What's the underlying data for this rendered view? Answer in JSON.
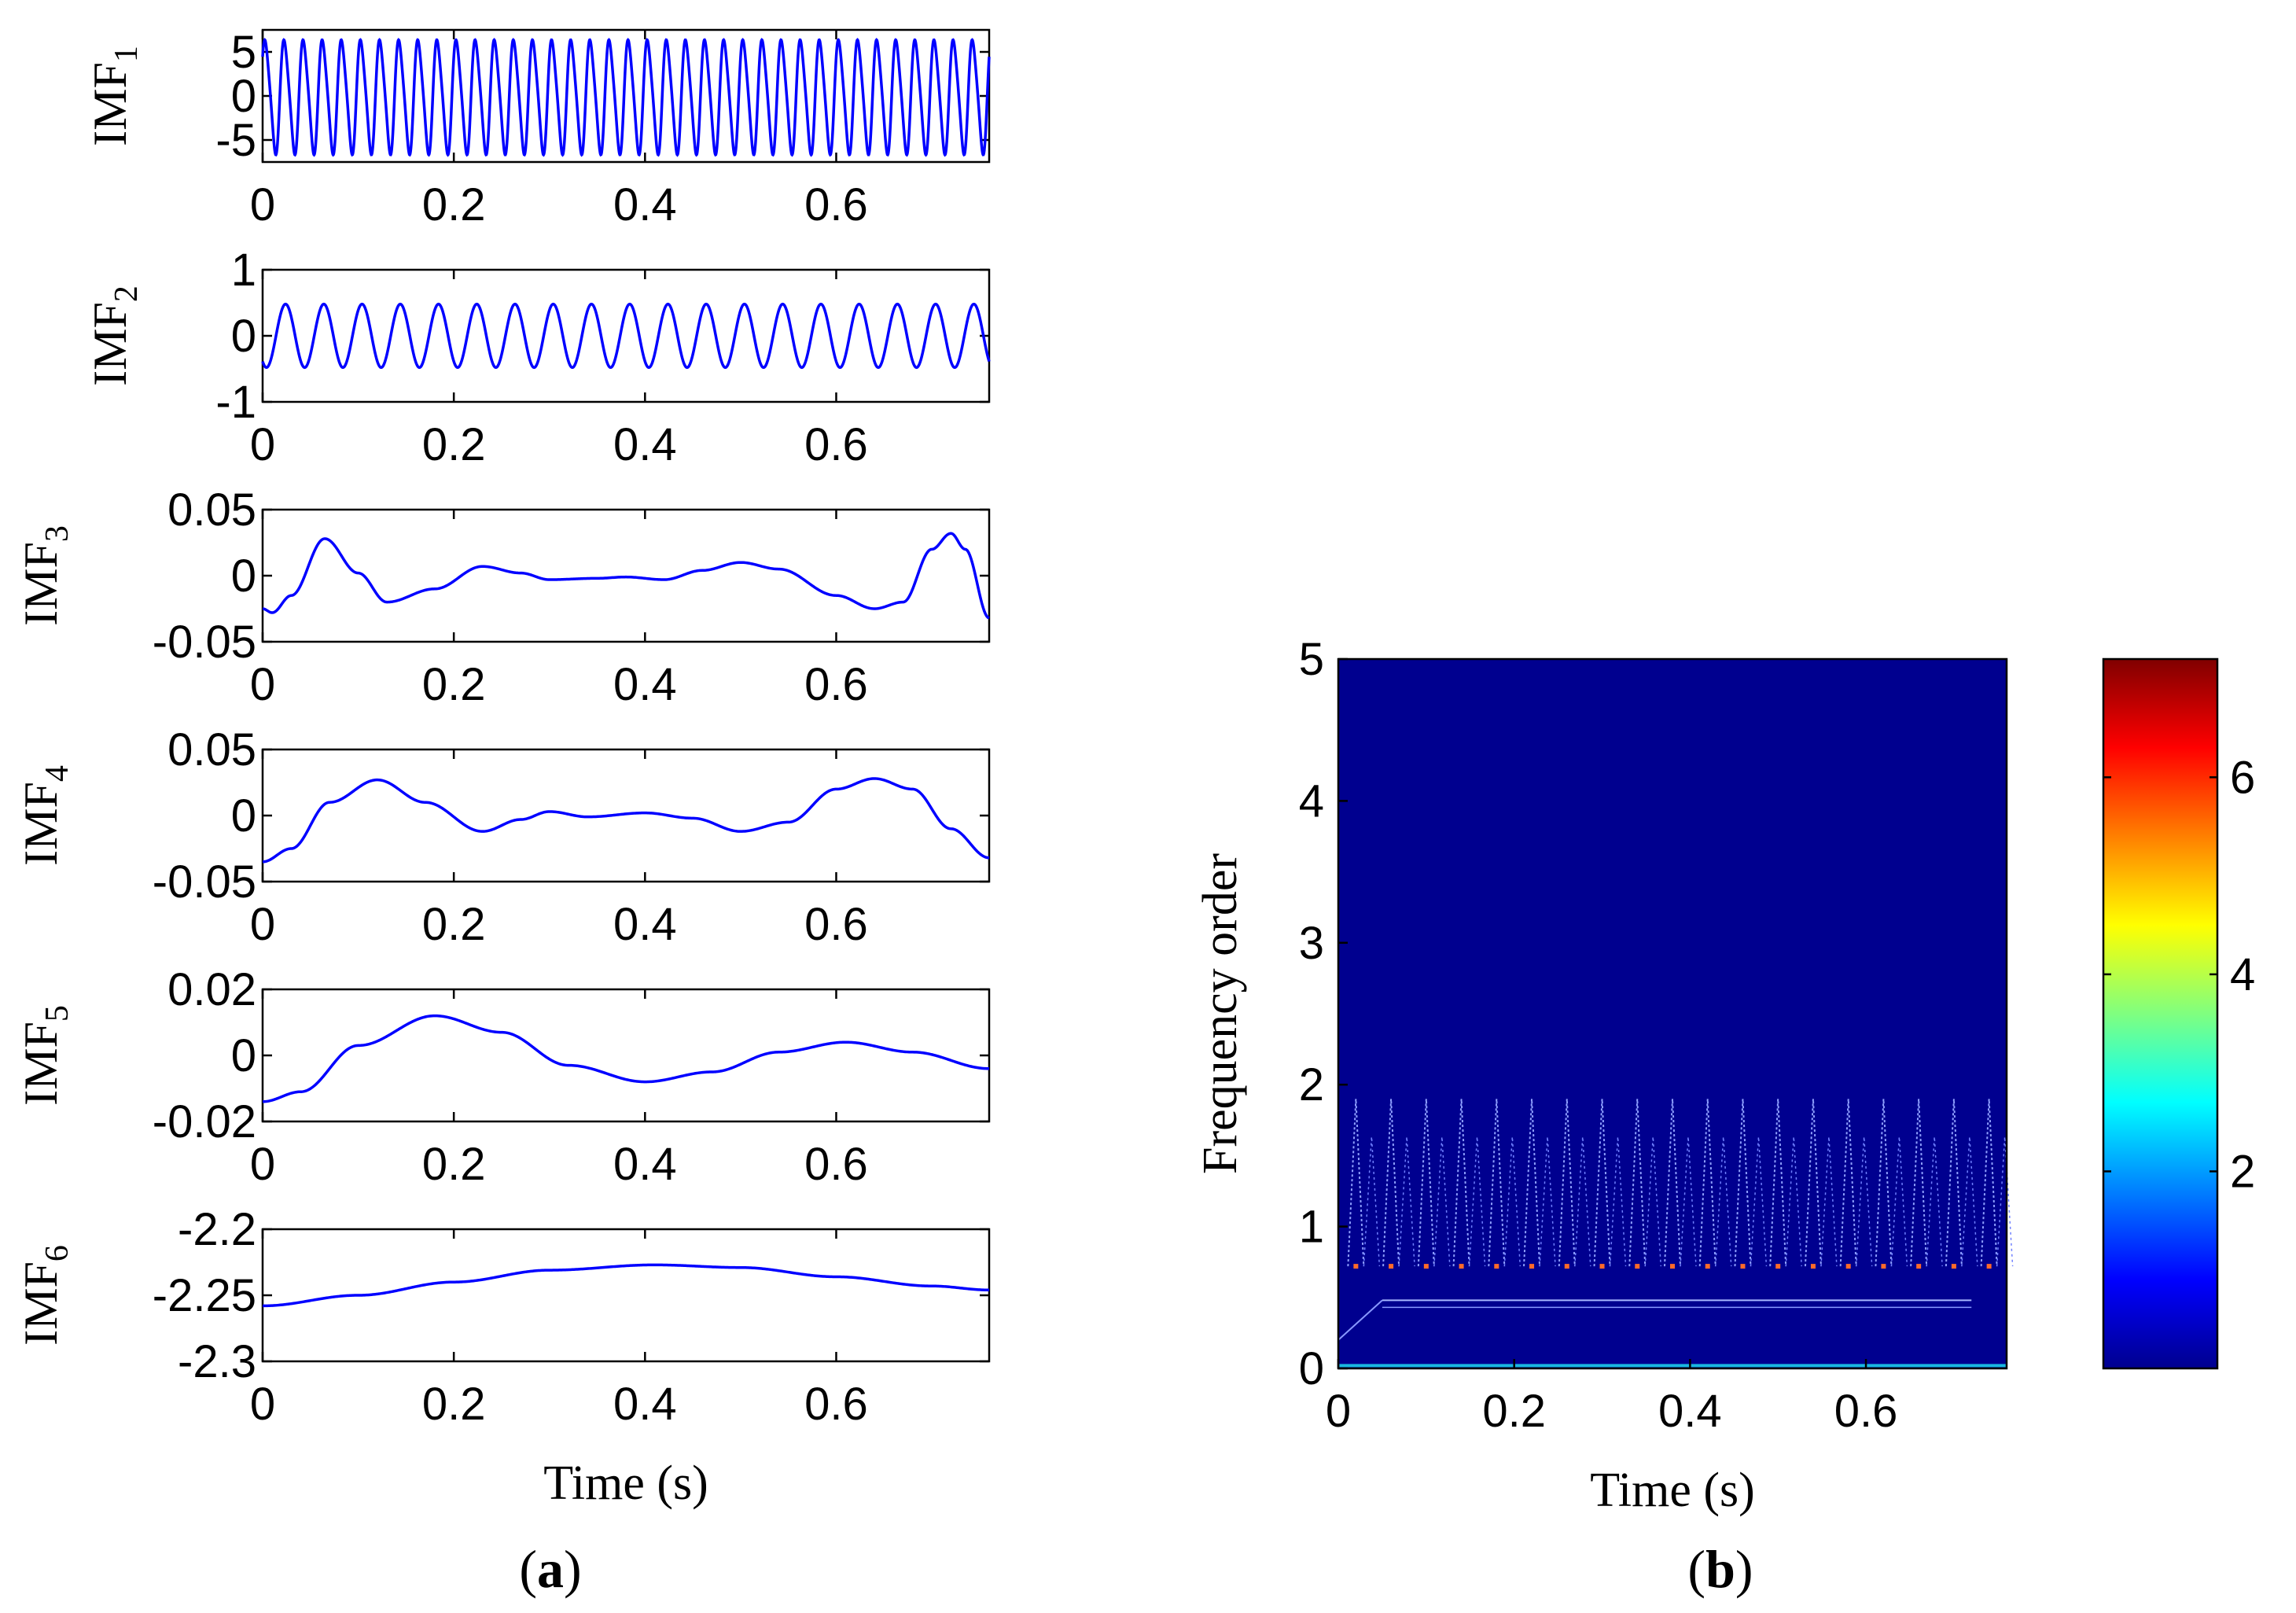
{
  "figure": {
    "panel_a_label": "a",
    "panel_b_label": "b",
    "xlabel": "Time (s)"
  },
  "chart_data": [
    {
      "type": "line",
      "panel": "a",
      "ylabel_base": "IMF",
      "ylabel_sub": "1",
      "xlim": [
        0,
        0.76
      ],
      "ylim": [
        -7.5,
        7.5
      ],
      "xticks": [
        0,
        0.2,
        0.4,
        0.6
      ],
      "xtick_labels": [
        "0",
        "0.2",
        "0.4",
        "0.6"
      ],
      "yticks": [
        5,
        0,
        -5
      ],
      "ytick_labels": [
        "5",
        "0",
        "-5"
      ],
      "xlabel": "",
      "series": [
        {
          "name": "IMF1",
          "color": "#0000ff",
          "model": "oscillation",
          "frequency_hz": 50,
          "amplitude": 6.3,
          "phase": 0.6,
          "mean": 0
        }
      ]
    },
    {
      "type": "line",
      "panel": "a",
      "ylabel_base": "IMF",
      "ylabel_sub": "2",
      "xlim": [
        0,
        0.76
      ],
      "ylim": [
        -1,
        1
      ],
      "xticks": [
        0,
        0.2,
        0.4,
        0.6
      ],
      "xtick_labels": [
        "0",
        "0.2",
        "0.4",
        "0.6"
      ],
      "yticks": [
        1,
        0,
        -1
      ],
      "ytick_labels": [
        "1",
        "0",
        "-1"
      ],
      "xlabel": "",
      "series": [
        {
          "name": "IMF2",
          "color": "#0000ff",
          "model": "oscillation",
          "frequency_hz": 25,
          "amplitude": 0.48,
          "phase": -2.2,
          "mean": 0
        }
      ]
    },
    {
      "type": "line",
      "panel": "a",
      "ylabel_base": "IMF",
      "ylabel_sub": "3",
      "xlim": [
        0,
        0.76
      ],
      "ylim": [
        -0.05,
        0.05
      ],
      "xticks": [
        0,
        0.2,
        0.4,
        0.6
      ],
      "xtick_labels": [
        "0",
        "0.2",
        "0.4",
        "0.6"
      ],
      "yticks": [
        0.05,
        0,
        -0.05
      ],
      "ytick_labels": [
        "0.05",
        "0",
        "-0.05"
      ],
      "xlabel": "",
      "series": [
        {
          "name": "IMF3",
          "color": "#0000ff",
          "x": [
            0,
            0.01,
            0.03,
            0.065,
            0.1,
            0.13,
            0.18,
            0.23,
            0.27,
            0.3,
            0.35,
            0.38,
            0.42,
            0.46,
            0.5,
            0.54,
            0.6,
            0.64,
            0.67,
            0.7,
            0.72,
            0.735,
            0.76
          ],
          "y": [
            -0.025,
            -0.028,
            -0.015,
            0.028,
            0.002,
            -0.02,
            -0.01,
            0.007,
            0.002,
            -0.003,
            -0.002,
            -0.001,
            -0.003,
            0.004,
            0.01,
            0.005,
            -0.015,
            -0.025,
            -0.02,
            0.02,
            0.032,
            0.02,
            -0.032
          ]
        }
      ]
    },
    {
      "type": "line",
      "panel": "a",
      "ylabel_base": "IMF",
      "ylabel_sub": "4",
      "xlim": [
        0,
        0.76
      ],
      "ylim": [
        -0.05,
        0.05
      ],
      "xticks": [
        0,
        0.2,
        0.4,
        0.6
      ],
      "xtick_labels": [
        "0",
        "0.2",
        "0.4",
        "0.6"
      ],
      "yticks": [
        0.05,
        0,
        -0.05
      ],
      "ytick_labels": [
        "0.05",
        "0",
        "-0.05"
      ],
      "xlabel": "",
      "series": [
        {
          "name": "IMF4",
          "color": "#0000ff",
          "x": [
            0,
            0.03,
            0.07,
            0.12,
            0.17,
            0.23,
            0.27,
            0.3,
            0.34,
            0.4,
            0.45,
            0.5,
            0.55,
            0.6,
            0.64,
            0.68,
            0.72,
            0.76
          ],
          "y": [
            -0.035,
            -0.025,
            0.01,
            0.027,
            0.01,
            -0.012,
            -0.003,
            0.003,
            -0.001,
            0.002,
            -0.002,
            -0.012,
            -0.005,
            0.02,
            0.028,
            0.02,
            -0.01,
            -0.032
          ]
        }
      ]
    },
    {
      "type": "line",
      "panel": "a",
      "ylabel_base": "IMF",
      "ylabel_sub": "5",
      "xlim": [
        0,
        0.76
      ],
      "ylim": [
        -0.02,
        0.02
      ],
      "xticks": [
        0,
        0.2,
        0.4,
        0.6
      ],
      "xtick_labels": [
        "0",
        "0.2",
        "0.4",
        "0.6"
      ],
      "yticks": [
        0.02,
        0,
        -0.02
      ],
      "ytick_labels": [
        "0.02",
        "0",
        "-0.02"
      ],
      "xlabel": "",
      "series": [
        {
          "name": "IMF5",
          "color": "#0000ff",
          "x": [
            0,
            0.04,
            0.1,
            0.18,
            0.25,
            0.32,
            0.4,
            0.47,
            0.54,
            0.61,
            0.68,
            0.76
          ],
          "y": [
            -0.014,
            -0.011,
            0.003,
            0.012,
            0.007,
            -0.003,
            -0.008,
            -0.005,
            0.001,
            0.004,
            0.001,
            -0.004
          ]
        }
      ]
    },
    {
      "type": "line",
      "panel": "a",
      "ylabel_base": "IMF",
      "ylabel_sub": "6",
      "xlim": [
        0,
        0.76
      ],
      "ylim": [
        -2.3,
        -2.2
      ],
      "xticks": [
        0,
        0.2,
        0.4,
        0.6
      ],
      "xtick_labels": [
        "0",
        "0.2",
        "0.4",
        "0.6"
      ],
      "yticks": [
        -2.2,
        -2.25,
        -2.3
      ],
      "ytick_labels": [
        "-2.2",
        "-2.25",
        "-2.3"
      ],
      "xlabel": "Time (s)",
      "series": [
        {
          "name": "IMF6",
          "color": "#0000ff",
          "x": [
            0,
            0.1,
            0.2,
            0.3,
            0.41,
            0.5,
            0.6,
            0.7,
            0.76
          ],
          "y": [
            -2.258,
            -2.25,
            -2.24,
            -2.231,
            -2.227,
            -2.229,
            -2.236,
            -2.243,
            -2.246
          ]
        }
      ]
    },
    {
      "type": "heatmap",
      "panel": "b",
      "title": "",
      "xlabel": "Time (s)",
      "ylabel": "Frequency order",
      "xlim": [
        0,
        0.76
      ],
      "ylim": [
        0,
        5
      ],
      "xticks": [
        0,
        0.2,
        0.4,
        0.6
      ],
      "xtick_labels": [
        "0",
        "0.2",
        "0.4",
        "0.6"
      ],
      "yticks": [
        0,
        1,
        2,
        3,
        4,
        5
      ],
      "ytick_labels": [
        "0",
        "1",
        "2",
        "3",
        "4",
        "5"
      ],
      "background_color": "#00008f",
      "description_values": {
        "spike_period_s": 0.04,
        "spike_peak_order": 1.9,
        "spike_low_order": 0.72,
        "hot_marker_order": 0.72,
        "band_order_upper": 0.48,
        "band_order_lower": 0.43,
        "base_line_order": 0.02
      },
      "colorbar": {
        "range": [
          0,
          7.2
        ],
        "ticks": [
          2,
          4,
          6
        ],
        "tick_labels": [
          "2",
          "4",
          "6"
        ],
        "colormap": "jet"
      }
    }
  ]
}
